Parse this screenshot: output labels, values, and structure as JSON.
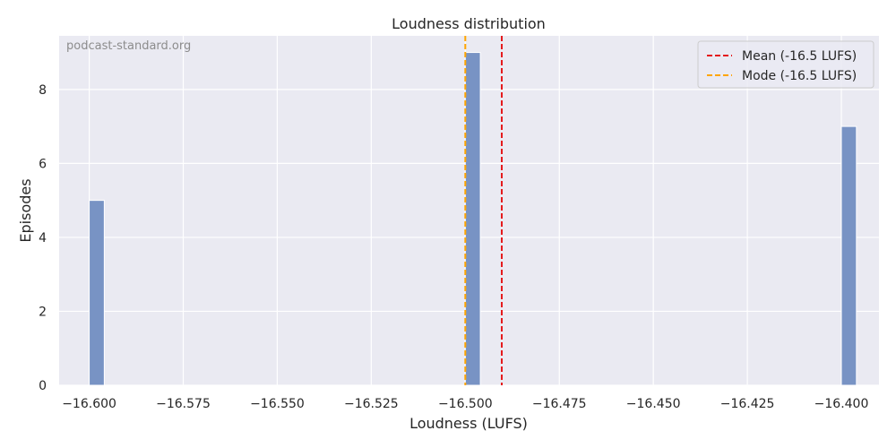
{
  "chart_data": {
    "type": "bar",
    "title": "Loudness distribution",
    "xlabel": "Loudness (LUFS)",
    "ylabel": "Episodes",
    "watermark": "podcast-standard.org",
    "xlim": [
      -16.608,
      -16.39
    ],
    "ylim": [
      0,
      9.45
    ],
    "x_ticks": [
      -16.6,
      -16.575,
      -16.55,
      -16.525,
      -16.5,
      -16.475,
      -16.45,
      -16.425,
      -16.4
    ],
    "x_tick_labels": [
      "−16.600",
      "−16.575",
      "−16.550",
      "−16.525",
      "−16.500",
      "−16.475",
      "−16.450",
      "−16.425",
      "−16.400"
    ],
    "y_ticks": [
      0,
      2,
      4,
      6,
      8
    ],
    "y_tick_labels": [
      "0",
      "2",
      "4",
      "6",
      "8"
    ],
    "bin_width": 0.004,
    "bins": [
      {
        "x_start": -16.6,
        "x_end": -16.596,
        "count": 5
      },
      {
        "x_start": -16.5,
        "x_end": -16.496,
        "count": 9
      },
      {
        "x_start": -16.4,
        "x_end": -16.396,
        "count": 7
      }
    ],
    "bar_color": "#7893c4",
    "grid": true,
    "lines": [
      {
        "name": "Mean (-16.5 LUFS)",
        "x": -16.4903,
        "color": "#e41a1c",
        "style": "dashed"
      },
      {
        "name": "Mode (-16.5 LUFS)",
        "x": -16.5,
        "color": "#ffa500",
        "style": "dashed"
      }
    ],
    "legend_position": "top-right"
  }
}
